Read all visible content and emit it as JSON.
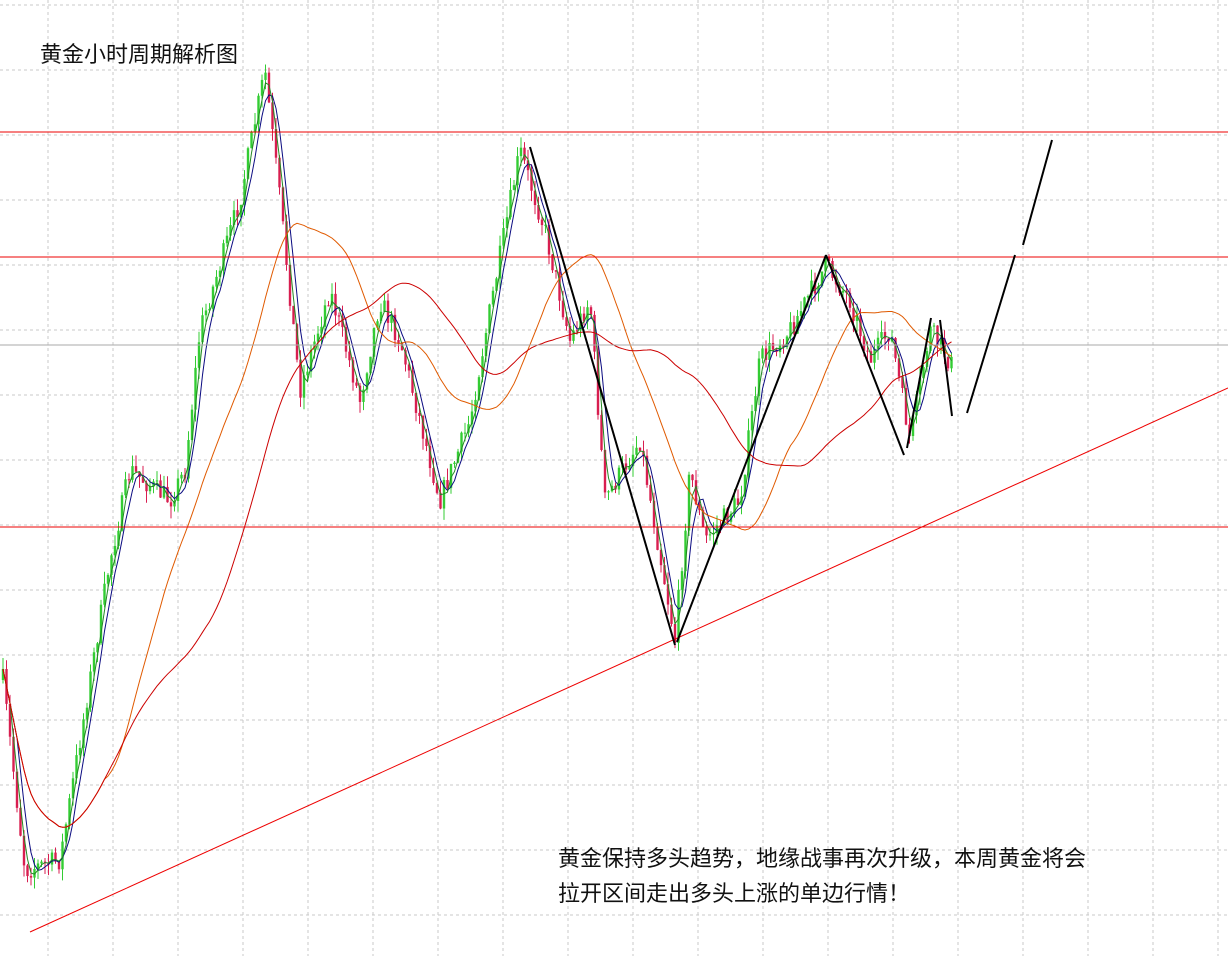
{
  "title": "黄金小时周期解析图",
  "annotation": [
    "黄金保持多头趋势，地缘战事再次升级，本周黄金将会",
    "拉开区间走出多头上涨的单边行情！"
  ]
}
